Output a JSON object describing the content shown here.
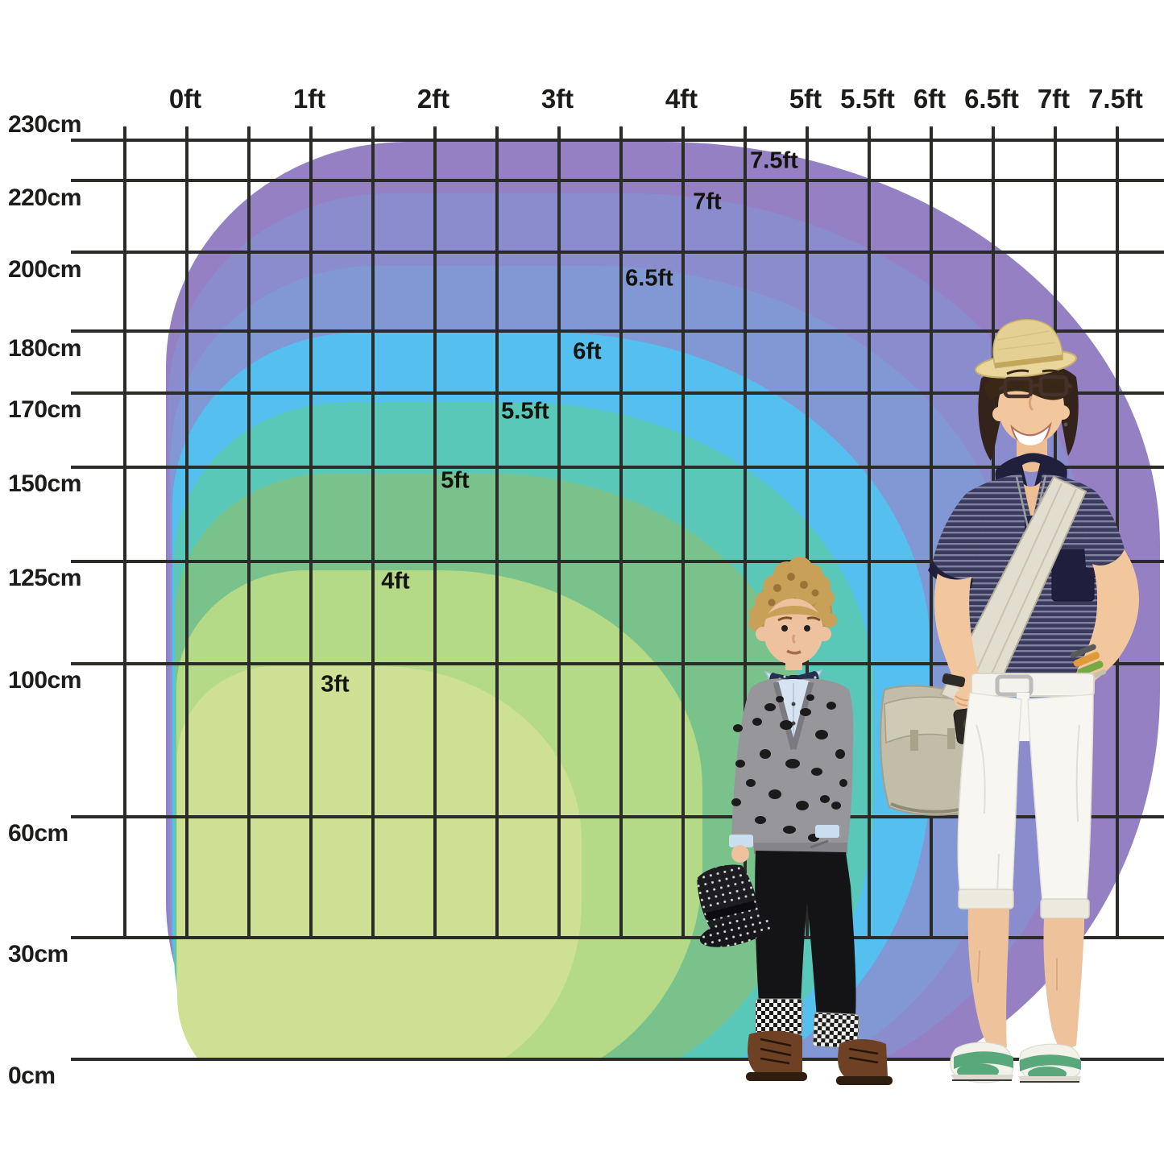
{
  "chart_data": {
    "type": "area",
    "x_axis": {
      "unit": "ft",
      "ticks": [
        "0ft",
        "1ft",
        "2ft",
        "3ft",
        "4ft",
        "5ft",
        "5.5ft",
        "6ft",
        "6.5ft",
        "7ft",
        "7.5ft"
      ]
    },
    "y_axis": {
      "unit": "cm",
      "ticks": [
        "230cm",
        "220cm",
        "200cm",
        "180cm",
        "170cm",
        "150cm",
        "125cm",
        "100cm",
        "60cm",
        "30cm",
        "0cm"
      ]
    },
    "grid": true,
    "legend_position": "none",
    "rings": [
      {
        "label": "7.5ft",
        "color": "#9480c2"
      },
      {
        "label": "7ft",
        "color": "#8a8cce"
      },
      {
        "label": "6.5ft",
        "color": "#8198d4"
      },
      {
        "label": "6ft",
        "color": "#55bff0"
      },
      {
        "label": "5.5ft",
        "color": "#5ac8b8"
      },
      {
        "label": "5ft",
        "color": "#79c28c"
      },
      {
        "label": "4ft",
        "color": "#b4da87"
      },
      {
        "label": "3ft",
        "color": "#cde094"
      }
    ],
    "figures": [
      {
        "name": "boy model"
      },
      {
        "name": "young man model"
      }
    ]
  }
}
